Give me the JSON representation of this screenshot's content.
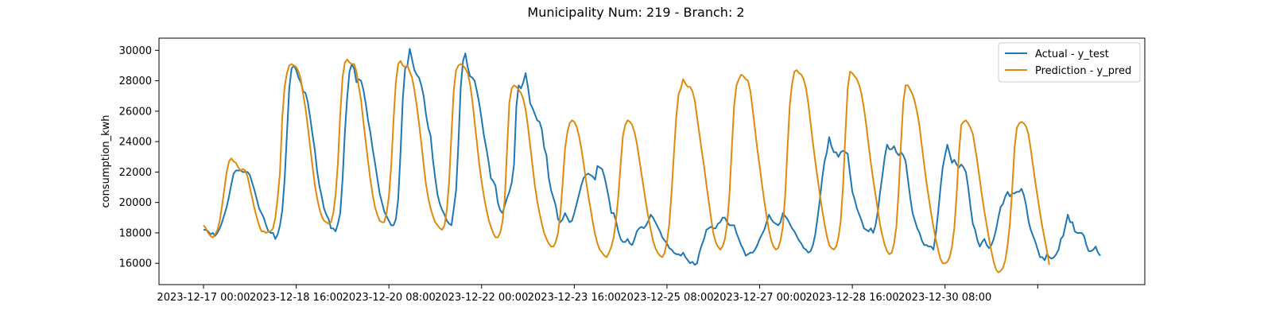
{
  "chart_data": {
    "type": "line",
    "title": "Municipality Num: 219 - Branch: 2",
    "xlabel": "",
    "ylabel": "consumption_kwh",
    "ylim": [
      14600,
      30800
    ],
    "yticks": [
      16000,
      18000,
      20000,
      22000,
      24000,
      26000,
      28000,
      30000
    ],
    "xticks": [
      "2023-12-17 00:00",
      "2023-12-18 16:00",
      "2023-12-20 08:00",
      "2023-12-22 00:00",
      "2023-12-23 16:00",
      "2023-12-25 08:00",
      "2023-12-27 00:00",
      "2023-12-28 16:00",
      "2023-12-30 08:00",
      ""
    ],
    "x_start": "2023-12-17 00:00",
    "x_step_hours": 1,
    "grid": false,
    "legend": "top-right",
    "series": [
      {
        "name": "Actual - y_test",
        "color": "#1f77b4",
        "values": [
          18200,
          18200,
          18100,
          17900,
          18000,
          17800,
          18000,
          18300,
          18700,
          19200,
          19700,
          20400,
          21200,
          21900,
          22100,
          22100,
          22100,
          22000,
          22000,
          22000,
          21800,
          21300,
          20800,
          20200,
          19600,
          19300,
          19000,
          18500,
          18100,
          18000,
          18000,
          17600,
          17900,
          18500,
          19500,
          21500,
          24500,
          27500,
          28800,
          29000,
          28700,
          28200,
          27900,
          27300,
          27200,
          26600,
          25600,
          24500,
          23500,
          22100,
          21100,
          20400,
          19600,
          19200,
          18900,
          18300,
          18300,
          18100,
          18600,
          19300,
          21500,
          24600,
          26900,
          28600,
          29100,
          28800,
          27900,
          28100,
          28000,
          27400,
          26500,
          25400,
          24600,
          23500,
          22600,
          21600,
          20600,
          20000,
          19400,
          19100,
          18800,
          18500,
          18500,
          18900,
          20200,
          23200,
          26800,
          28800,
          29000,
          30100,
          29400,
          28700,
          28400,
          28200,
          27700,
          27000,
          25800,
          24900,
          24400,
          22800,
          21600,
          20500,
          19900,
          19500,
          19200,
          18800,
          18600,
          18500,
          19600,
          20800,
          23900,
          27600,
          29300,
          29800,
          28900,
          28300,
          28200,
          28000,
          27300,
          26500,
          25500,
          24400,
          23600,
          22700,
          21600,
          21400,
          21100,
          20000,
          19500,
          19300,
          19800,
          20300,
          20700,
          21300,
          22500,
          26300,
          27700,
          27500,
          27900,
          28500,
          27600,
          26500,
          26200,
          25800,
          25400,
          25300,
          24800,
          23600,
          23100,
          21600,
          20800,
          20300,
          19800,
          18900,
          18700,
          18900,
          19300,
          19000,
          18700,
          18800,
          19300,
          19900,
          20500,
          21100,
          21600,
          21800,
          21900,
          21800,
          21700,
          21500,
          22400,
          22300,
          22200,
          21700,
          21000,
          20200,
          19300,
          19300,
          18800,
          18100,
          17600,
          17400,
          17400,
          17600,
          17300,
          17200,
          17600,
          18100,
          18300,
          18400,
          18300,
          18500,
          18800,
          19200,
          19000,
          18700,
          18400,
          18100,
          17700,
          17500,
          17300,
          17000,
          16900,
          16700,
          16600,
          16600,
          16500,
          16700,
          16400,
          16200,
          16000,
          16100,
          15900,
          16000,
          16700,
          17200,
          17600,
          18200,
          18300,
          18400,
          18300,
          18300,
          18600,
          18700,
          19000,
          19000,
          18700,
          18500,
          18500,
          18500,
          18000,
          17600,
          17200,
          16900,
          16500,
          16600,
          16700,
          16700,
          16900,
          17200,
          17600,
          17900,
          18200,
          18700,
          19200,
          18900,
          18700,
          18600,
          18500,
          18700,
          19300,
          19100,
          18900,
          18600,
          18300,
          18100,
          17800,
          17500,
          17300,
          17000,
          16900,
          16700,
          16800,
          17200,
          17900,
          19000,
          20200,
          21600,
          22700,
          23300,
          24300,
          23700,
          23300,
          23300,
          23000,
          23300,
          23400,
          23300,
          23200,
          21900,
          20700,
          20200,
          19600,
          19200,
          18800,
          18300,
          18200,
          18100,
          18300,
          18000,
          18500,
          19400,
          20700,
          21800,
          23000,
          23800,
          23500,
          23500,
          23700,
          23300,
          23100,
          23300,
          23100,
          22700,
          21500,
          20300,
          19300,
          18800,
          18300,
          18000,
          17500,
          17200,
          17200,
          17100,
          17100,
          16900,
          17900,
          19300,
          20900,
          22300,
          23100,
          23800,
          23200,
          22600,
          22800,
          22500,
          22300,
          22500,
          22300,
          22000,
          21000,
          19700,
          18600,
          18200,
          17500,
          17100,
          17400,
          17600,
          17200,
          17000,
          17200,
          17600,
          18200,
          19000,
          19700,
          19900,
          20400,
          20700,
          20400,
          20600,
          20600,
          20700,
          20700,
          20900,
          20500,
          19800,
          18800,
          18200,
          17800,
          17400,
          16900,
          16400,
          16400,
          16200,
          16600,
          16400,
          16300,
          16400,
          16600,
          16900,
          17600,
          17800,
          18500,
          19200,
          18700,
          18700,
          18100,
          18000,
          18000,
          18000,
          17800,
          17200,
          16800,
          16800,
          16900,
          17100,
          16700,
          16500
        ]
      },
      {
        "name": "Prediction - y_pred",
        "color": "#e08a0b",
        "values": [
          18500,
          18300,
          18000,
          17800,
          17700,
          17900,
          18200,
          18800,
          19800,
          20900,
          22000,
          22700,
          22900,
          22700,
          22600,
          22300,
          22100,
          22200,
          22100,
          21700,
          21000,
          20300,
          19600,
          19000,
          18500,
          18100,
          18100,
          18000,
          18100,
          18100,
          18300,
          19000,
          20300,
          22000,
          25600,
          27600,
          28500,
          29000,
          29100,
          29000,
          28900,
          28600,
          28100,
          27100,
          26200,
          25000,
          23700,
          22400,
          21200,
          20300,
          19600,
          19100,
          18800,
          18700,
          18600,
          18700,
          19300,
          20500,
          22600,
          25800,
          28200,
          29200,
          29400,
          29200,
          29100,
          29100,
          28600,
          27600,
          26700,
          25300,
          24000,
          22700,
          21500,
          20500,
          19700,
          19200,
          18800,
          18700,
          18700,
          19300,
          20400,
          22400,
          25400,
          27900,
          29100,
          29300,
          29000,
          28900,
          29000,
          28600,
          28200,
          27400,
          26400,
          25200,
          23900,
          22500,
          21200,
          20300,
          19600,
          19100,
          18700,
          18500,
          18300,
          18200,
          18500,
          19500,
          21400,
          24500,
          27400,
          28700,
          29000,
          29100,
          29000,
          28800,
          28500,
          27800,
          26700,
          25300,
          23900,
          22500,
          21400,
          20400,
          19600,
          18900,
          18400,
          18000,
          17700,
          17700,
          18000,
          18700,
          20200,
          23500,
          26600,
          27500,
          27700,
          27600,
          27400,
          27200,
          26800,
          26100,
          25000,
          23700,
          22400,
          21100,
          20100,
          19300,
          18600,
          18000,
          17600,
          17300,
          17100,
          17100,
          17400,
          18000,
          19300,
          21300,
          23500,
          24600,
          25200,
          25400,
          25300,
          25000,
          24400,
          23600,
          22600,
          21500,
          20500,
          19600,
          18700,
          17900,
          17300,
          16900,
          16700,
          16500,
          16400,
          16700,
          17100,
          17700,
          18800,
          20400,
          22500,
          24400,
          25100,
          25400,
          25300,
          25100,
          24600,
          23900,
          22900,
          21900,
          20900,
          19900,
          19000,
          18200,
          17500,
          17000,
          16700,
          16500,
          16400,
          16700,
          17400,
          18600,
          20700,
          23200,
          25600,
          27100,
          27500,
          28100,
          27800,
          27600,
          27600,
          27300,
          26700,
          25600,
          24500,
          23400,
          22400,
          21200,
          20100,
          19000,
          18000,
          17400,
          17100,
          16900,
          17100,
          17600,
          18600,
          20600,
          23600,
          26400,
          27700,
          28100,
          28400,
          28300,
          28100,
          28000,
          27300,
          26100,
          24800,
          23500,
          22400,
          21200,
          20100,
          19100,
          18200,
          17500,
          17100,
          16900,
          17000,
          17500,
          18400,
          20400,
          23500,
          26400,
          27800,
          28600,
          28700,
          28500,
          28400,
          28100,
          27500,
          26500,
          25200,
          23900,
          22700,
          21600,
          20500,
          19500,
          18600,
          17800,
          17200,
          17000,
          16900,
          17100,
          17700,
          18800,
          21100,
          24500,
          27500,
          28600,
          28500,
          28300,
          28100,
          27700,
          27100,
          26200,
          25100,
          23800,
          22600,
          21500,
          20500,
          19500,
          18500,
          17800,
          17200,
          16800,
          16600,
          16700,
          17300,
          18400,
          20800,
          23900,
          26600,
          27700,
          27700,
          27400,
          27100,
          26600,
          25900,
          25000,
          23700,
          22500,
          21300,
          20300,
          19300,
          18400,
          17600,
          16900,
          16300,
          16000,
          16000,
          16100,
          16400,
          17100,
          18300,
          20500,
          23200,
          25100,
          25300,
          25400,
          25200,
          24900,
          24500,
          23600,
          22600,
          21500,
          20400,
          19400,
          18500,
          17600,
          16800,
          16100,
          15600,
          15400,
          15500,
          15700,
          16200,
          17200,
          18600,
          20900,
          23600,
          24900,
          25200,
          25300,
          25200,
          25000,
          24500,
          23500,
          22400,
          21300,
          20300,
          19300,
          18400,
          17600,
          16800,
          15900
        ]
      }
    ]
  }
}
